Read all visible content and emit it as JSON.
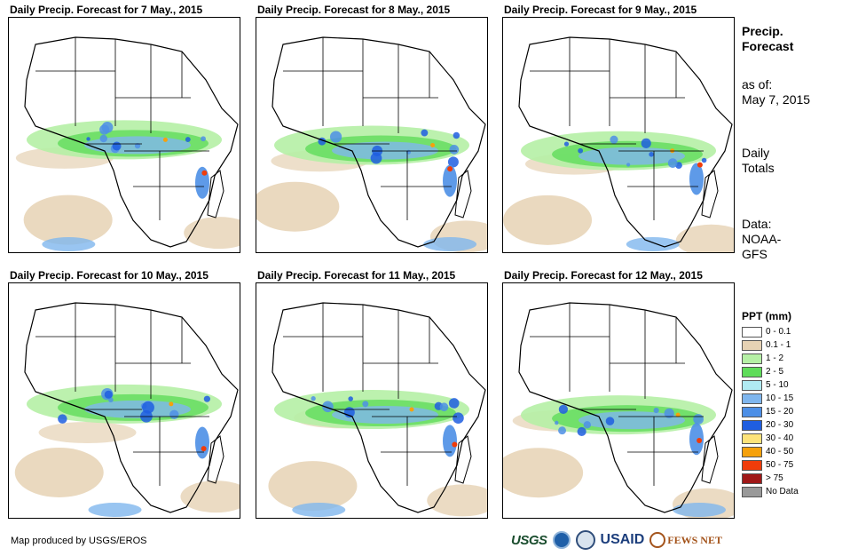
{
  "panels": [
    {
      "title": "Daily Precip. Forecast for 7 May., 2015"
    },
    {
      "title": "Daily Precip. Forecast for 8 May., 2015"
    },
    {
      "title": "Daily Precip. Forecast for 9 May., 2015"
    },
    {
      "title": "Daily Precip. Forecast for 10 May., 2015"
    },
    {
      "title": "Daily Precip. Forecast for 11 May., 2015"
    },
    {
      "title": "Daily Precip. Forecast for 12 May., 2015"
    }
  ],
  "side": {
    "title_line1": "Precip.",
    "title_line2": "Forecast",
    "asof_label": "as of:",
    "asof_date": "May 7, 2015",
    "totals_line1": "Daily",
    "totals_line2": "Totals",
    "data_line1": "Data:",
    "data_line2": "NOAA-",
    "data_line3": "GFS"
  },
  "legend": {
    "title": "PPT (mm)",
    "items": [
      {
        "label": "0 - 0.1",
        "color": "#ffffff"
      },
      {
        "label": "0.1 - 1",
        "color": "#e6d2b4"
      },
      {
        "label": "1 - 2",
        "color": "#b5f0a5"
      },
      {
        "label": "2 - 5",
        "color": "#5fdc5a"
      },
      {
        "label": "5 - 10",
        "color": "#b0eaf2"
      },
      {
        "label": "10 - 15",
        "color": "#7fb6ee"
      },
      {
        "label": "15 - 20",
        "color": "#4d8fe6"
      },
      {
        "label": "20 - 30",
        "color": "#1f5ee0"
      },
      {
        "label": "30 - 40",
        "color": "#fde37a"
      },
      {
        "label": "40 - 50",
        "color": "#f5a10c"
      },
      {
        "label": "50 - 75",
        "color": "#f03c0a"
      },
      {
        "label": "> 75",
        "color": "#a01818"
      },
      {
        "label": "No Data",
        "color": "#999999"
      }
    ]
  },
  "footer": {
    "credit": "Map produced by USGS/EROS"
  },
  "logos": {
    "usgs": "USGS",
    "usaid": "USAID",
    "fews": "FEWS NET"
  }
}
